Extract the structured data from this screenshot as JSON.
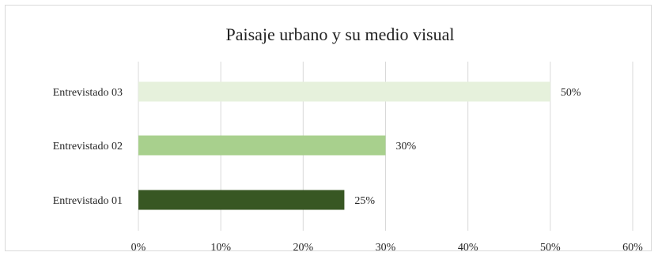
{
  "chart_data": {
    "type": "bar",
    "orientation": "horizontal",
    "title": "Paisaje urbano y su medio visual",
    "xlabel": "",
    "ylabel": "",
    "categories": [
      "Entrevistado 03",
      "Entrevistado 02",
      "Entrevistado 01"
    ],
    "values": [
      50,
      30,
      25
    ],
    "value_labels": [
      "50%",
      "30%",
      "25%"
    ],
    "bar_colors": [
      "#e6f1dc",
      "#a8d08d",
      "#385723"
    ],
    "xlim": [
      0,
      60
    ],
    "x_ticks": [
      0,
      10,
      20,
      30,
      40,
      50,
      60
    ],
    "x_tick_labels": [
      "0%",
      "10%",
      "20%",
      "30%",
      "40%",
      "50%",
      "60%"
    ],
    "grid": "vertical",
    "legend": "none"
  }
}
